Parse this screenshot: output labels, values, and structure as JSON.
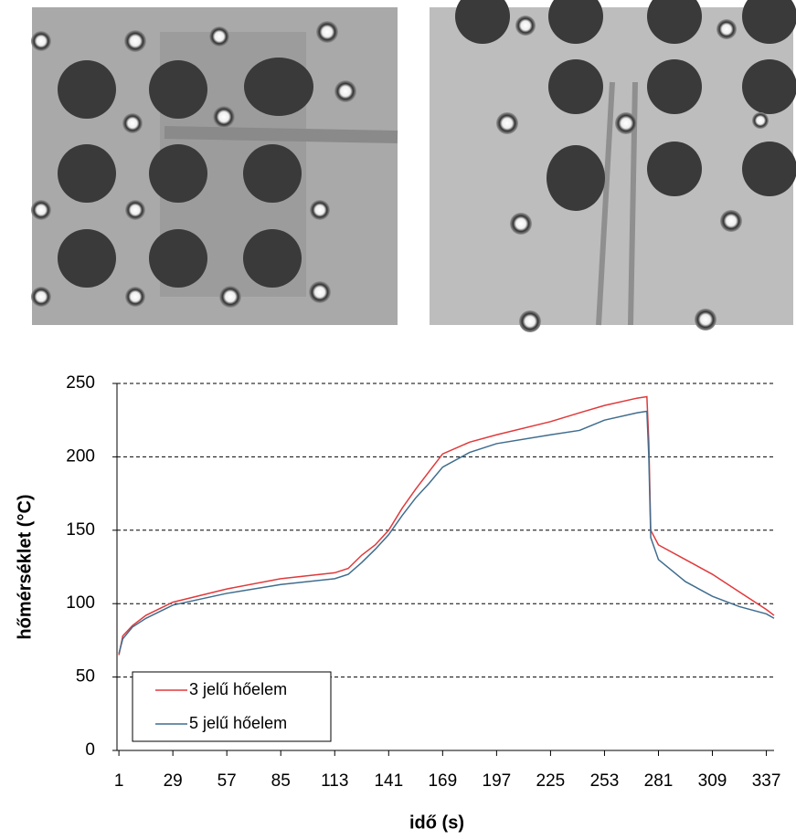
{
  "chart_data": {
    "type": "line",
    "xlabel": "idő (s)",
    "ylabel": "hőmérséklet (°C)",
    "x": [
      1,
      3,
      8,
      15,
      29,
      57,
      85,
      113,
      120,
      127,
      134,
      141,
      148,
      155,
      162,
      169,
      183,
      197,
      225,
      240,
      253,
      270,
      275,
      276,
      277,
      281,
      295,
      309,
      323,
      337,
      341
    ],
    "series": [
      {
        "name": "3 jelű hőelem",
        "color": "#e0393b",
        "values": [
          65,
          78,
          85,
          92,
          101,
          110,
          117,
          121,
          124,
          133,
          140,
          150,
          165,
          178,
          190,
          202,
          210,
          215,
          224,
          230,
          235,
          240,
          241,
          210,
          150,
          140,
          130,
          120,
          108,
          96,
          92
        ]
      },
      {
        "name": "5 jelű hőelem",
        "color": "#3f6d8e",
        "values": [
          66,
          76,
          84,
          90,
          99,
          107,
          113,
          117,
          120,
          128,
          137,
          147,
          160,
          172,
          182,
          193,
          203,
          209,
          215,
          218,
          225,
          230,
          231,
          200,
          145,
          130,
          115,
          105,
          98,
          93,
          90
        ]
      }
    ],
    "xlim": [
      0,
      341
    ],
    "xticks": [
      1,
      29,
      57,
      85,
      113,
      141,
      169,
      197,
      225,
      253,
      281,
      309,
      337
    ],
    "ylim": [
      0,
      250
    ],
    "yticks": [
      0,
      50,
      100,
      150,
      200,
      250
    ],
    "grid": true,
    "legend": "lower left"
  }
}
